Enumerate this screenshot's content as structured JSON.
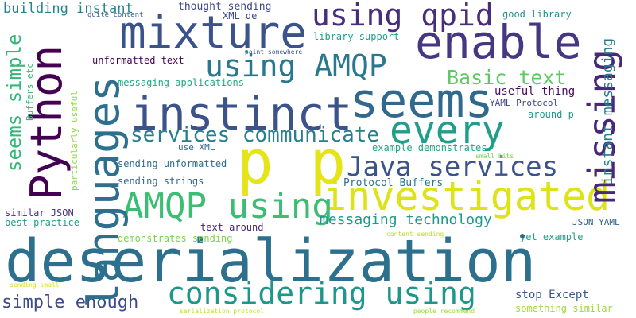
{
  "words": [
    {
      "text": "deserialization",
      "color": "#2d708e"
    },
    {
      "text": "p p",
      "color": "#e5e419"
    },
    {
      "text": "Python",
      "color": "#440154"
    },
    {
      "text": "languages",
      "color": "#2d708e"
    },
    {
      "text": "investigated",
      "color": "#dde318"
    },
    {
      "text": "instinct",
      "color": "#3b528b"
    },
    {
      "text": "seems",
      "color": "#31688e"
    },
    {
      "text": "every",
      "color": "#1f9e89"
    },
    {
      "text": "mixture",
      "color": "#3b528b"
    },
    {
      "text": "enable",
      "color": "#453781"
    },
    {
      "text": "missing",
      "color": "#482878"
    },
    {
      "text": "using qpid",
      "color": "#472d7b"
    },
    {
      "text": "using AMQP",
      "color": "#2a788e"
    },
    {
      "text": "AMQP using",
      "color": "#3dbc74"
    },
    {
      "text": "considering using",
      "color": "#1f968b"
    },
    {
      "text": "Java services",
      "color": "#3b528b"
    },
    {
      "text": "services communicate",
      "color": "#277f8e"
    },
    {
      "text": "Basic text",
      "color": "#5ec962"
    },
    {
      "text": "seems simple",
      "color": "#35b779"
    },
    {
      "text": "simple enough",
      "color": "#3e4a89"
    },
    {
      "text": "building instant",
      "color": "#26828e"
    },
    {
      "text": "instant messaging",
      "color": "#287c8e"
    },
    {
      "text": "messaging technology",
      "color": "#1f9a8a"
    },
    {
      "text": "thought sending",
      "color": "#3e4989"
    },
    {
      "text": "XML de",
      "color": "#3e4989"
    },
    {
      "text": "quite content",
      "color": "#365c8d"
    },
    {
      "text": "good library",
      "color": "#21918c"
    },
    {
      "text": "library support",
      "color": "#1f9e89"
    },
    {
      "text": "point somewhere",
      "color": "#3b528b"
    },
    {
      "text": "unformatted text",
      "color": "#440154"
    },
    {
      "text": "messaging applications",
      "color": "#22a884"
    },
    {
      "text": "useful thing",
      "color": "#460b5e"
    },
    {
      "text": "YAML Protocol",
      "color": "#3f4788"
    },
    {
      "text": "around p",
      "color": "#1f9a8a"
    },
    {
      "text": "use XML",
      "color": "#31688e"
    },
    {
      "text": "example demonstrates",
      "color": "#21a585"
    },
    {
      "text": "small bits",
      "color": "#7ad151"
    },
    {
      "text": "sending unformatted",
      "color": "#2e6f8e"
    },
    {
      "text": "sending strings",
      "color": "#32648e"
    },
    {
      "text": "Protocol Buffers",
      "color": "#2c738e"
    },
    {
      "text": "Buffers etc",
      "color": "#35b779"
    },
    {
      "text": "particularly useful",
      "color": "#8fd744"
    },
    {
      "text": "similar JSON",
      "color": "#46337f"
    },
    {
      "text": "best practice",
      "color": "#1f9e89"
    },
    {
      "text": "text around",
      "color": "#481f70"
    },
    {
      "text": "demonstrates sending",
      "color": "#7ad151"
    },
    {
      "text": "JSON YAML",
      "color": "#34618d"
    },
    {
      "text": "yet example",
      "color": "#1fa188"
    },
    {
      "text": "content sending",
      "color": "#b8de29"
    },
    {
      "text": "stop Except",
      "color": "#39568c"
    },
    {
      "text": "something similar",
      "color": "#a0da39"
    },
    {
      "text": "sending small",
      "color": "#d8e219"
    },
    {
      "text": "serialization protocol",
      "color": "#c2df23"
    },
    {
      "text": "people recommend",
      "color": "#9bd93c"
    }
  ]
}
